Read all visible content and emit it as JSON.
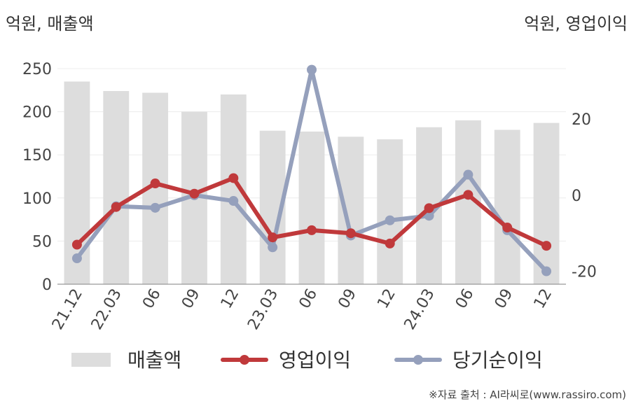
{
  "header": {
    "left_unit": "억원, 매출액",
    "right_unit": "억원, 영업이익"
  },
  "source": "※자료 출처 : AI라씨로(www.rassiro.com)",
  "chart_data": {
    "type": "bar",
    "categories": [
      "21.12",
      "22.03",
      "06",
      "09",
      "12",
      "23.03",
      "06",
      "09",
      "12",
      "24.03",
      "06",
      "09",
      "12"
    ],
    "y_left": {
      "ticks": [
        0,
        50,
        100,
        150,
        200,
        250
      ],
      "ylim": [
        0,
        250
      ]
    },
    "y_right": {
      "ticks": [
        -20,
        0,
        20
      ],
      "ylim": [
        -23.4,
        33.3
      ]
    },
    "grid": true,
    "legend_position": "bottom",
    "series": [
      {
        "name": "매출액",
        "kind": "bar",
        "axis": "left",
        "color": "#dddddd",
        "values": [
          235,
          224,
          222,
          200,
          220,
          178,
          177,
          171,
          168,
          182,
          190,
          179,
          187
        ]
      },
      {
        "name": "영업이익",
        "kind": "line",
        "axis": "right",
        "color": "#c0393b",
        "values": [
          -13.0,
          -3.1,
          3.1,
          0.4,
          4.5,
          -11.1,
          -9.2,
          -10.0,
          -12.7,
          -3.4,
          0.1,
          -8.5,
          -13.3
        ]
      },
      {
        "name": "당기순이익",
        "kind": "line",
        "axis": "right",
        "color": "#95a0bc",
        "values": [
          -16.6,
          -2.9,
          -3.3,
          0.0,
          -1.5,
          -13.7,
          33.0,
          -10.6,
          -6.6,
          -5.4,
          5.4,
          -9.2,
          -20.0
        ]
      }
    ]
  }
}
